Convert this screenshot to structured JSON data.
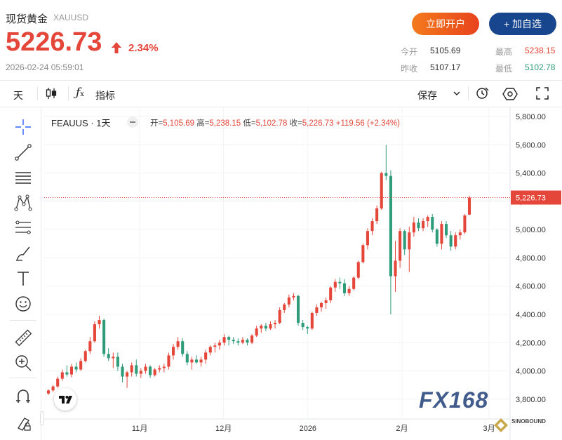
{
  "header": {
    "title": "现货黄金",
    "symbol": "XAUUSD",
    "price": "5226.73",
    "change_pct": "2.34%",
    "datetime": "2026-02-24 05:59:01",
    "open_account_label": "立即开户",
    "add_watch_label": "+ 加自选"
  },
  "stats": {
    "open_label": "今开",
    "open": "5105.69",
    "high_label": "最高",
    "high": "5238.15",
    "prev_close_label": "昨收",
    "prev_close": "5107.17",
    "low_label": "最低",
    "low": "5102.78"
  },
  "toolbar": {
    "interval": "天",
    "indicators_label": "指标",
    "save_label": "保存"
  },
  "chart_legend": {
    "name": "FEAUUS · 1天",
    "open_label": "开",
    "open": "5,105.69",
    "high_label": "高",
    "high": "5,238.15",
    "low_label": "低",
    "low": "5,102.78",
    "close_label": "收",
    "close": "5,226.73",
    "change": "+119.56 (+2.34%)"
  },
  "watermarks": {
    "fx168": "FX168",
    "sinobound": "SINOBOUND"
  },
  "colors": {
    "up": "#e5463a",
    "down": "#2e9b79",
    "accent": "#17468f"
  },
  "chart_data": {
    "type": "candlestick",
    "y_ticks": [
      "5,800.00",
      "5,600.00",
      "5,400.00",
      "5,200.00",
      "5,000.00",
      "4,800.00",
      "4,600.00",
      "4,400.00",
      "4,200.00",
      "4,000.00",
      "3,800.00"
    ],
    "x_ticks": [
      "11月",
      "12月",
      "2026",
      "2月",
      "3月"
    ],
    "last_price_label": "5,226.73",
    "last_price": 5226.73,
    "ylim": [
      3660,
      5870
    ],
    "candles": [
      [
        3840,
        3870,
        3830,
        3862
      ],
      [
        3862,
        3900,
        3850,
        3890
      ],
      [
        3890,
        3960,
        3880,
        3945
      ],
      [
        3945,
        4010,
        3930,
        3990
      ],
      [
        3990,
        4040,
        3960,
        3975
      ],
      [
        3975,
        4050,
        3955,
        4030
      ],
      [
        4030,
        4060,
        3990,
        4010
      ],
      [
        4010,
        4090,
        4000,
        4070
      ],
      [
        4070,
        4150,
        4060,
        4140
      ],
      [
        4140,
        4240,
        4120,
        4210
      ],
      [
        4210,
        4350,
        4200,
        4330
      ],
      [
        4330,
        4390,
        4300,
        4360
      ],
      [
        4360,
        4370,
        4100,
        4120
      ],
      [
        4120,
        4160,
        4070,
        4090
      ],
      [
        4090,
        4130,
        4020,
        4100
      ],
      [
        4100,
        4130,
        4000,
        4030
      ],
      [
        4030,
        4050,
        3920,
        3960
      ],
      [
        3960,
        4000,
        3880,
        3990
      ],
      [
        3990,
        4060,
        3960,
        4040
      ],
      [
        4040,
        4080,
        3960,
        3980
      ],
      [
        3980,
        4020,
        3950,
        4000
      ],
      [
        4000,
        4050,
        3980,
        4030
      ],
      [
        4030,
        4040,
        3950,
        3970
      ],
      [
        3970,
        4020,
        3960,
        4010
      ],
      [
        4010,
        4040,
        3990,
        4020
      ],
      [
        4020,
        4050,
        3990,
        4030
      ],
      [
        4030,
        4130,
        4010,
        4110
      ],
      [
        4110,
        4190,
        4080,
        4170
      ],
      [
        4170,
        4240,
        4150,
        4210
      ],
      [
        4210,
        4230,
        4100,
        4120
      ],
      [
        4120,
        4140,
        4040,
        4060
      ],
      [
        4060,
        4100,
        4010,
        4080
      ],
      [
        4080,
        4110,
        4050,
        4060
      ],
      [
        4060,
        4100,
        4030,
        4080
      ],
      [
        4080,
        4150,
        4050,
        4130
      ],
      [
        4130,
        4180,
        4110,
        4170
      ],
      [
        4170,
        4200,
        4130,
        4180
      ],
      [
        4180,
        4220,
        4150,
        4200
      ],
      [
        4200,
        4260,
        4180,
        4240
      ],
      [
        4240,
        4250,
        4180,
        4220
      ],
      [
        4220,
        4240,
        4190,
        4210
      ],
      [
        4210,
        4230,
        4180,
        4200
      ],
      [
        4200,
        4240,
        4190,
        4220
      ],
      [
        4220,
        4230,
        4180,
        4200
      ],
      [
        4200,
        4260,
        4190,
        4250
      ],
      [
        4250,
        4320,
        4240,
        4300
      ],
      [
        4300,
        4330,
        4270,
        4320
      ],
      [
        4320,
        4340,
        4280,
        4300
      ],
      [
        4300,
        4350,
        4290,
        4330
      ],
      [
        4330,
        4360,
        4300,
        4340
      ],
      [
        4340,
        4450,
        4330,
        4430
      ],
      [
        4430,
        4480,
        4410,
        4470
      ],
      [
        4470,
        4540,
        4450,
        4520
      ],
      [
        4520,
        4550,
        4500,
        4530
      ],
      [
        4530,
        4540,
        4320,
        4340
      ],
      [
        4340,
        4360,
        4290,
        4310
      ],
      [
        4310,
        4320,
        4260,
        4300
      ],
      [
        4300,
        4420,
        4290,
        4410
      ],
      [
        4410,
        4470,
        4390,
        4450
      ],
      [
        4450,
        4490,
        4420,
        4480
      ],
      [
        4480,
        4520,
        4440,
        4500
      ],
      [
        4500,
        4600,
        4480,
        4590
      ],
      [
        4590,
        4650,
        4560,
        4630
      ],
      [
        4630,
        4660,
        4580,
        4620
      ],
      [
        4620,
        4650,
        4530,
        4550
      ],
      [
        4550,
        4600,
        4530,
        4580
      ],
      [
        4580,
        4670,
        4570,
        4660
      ],
      [
        4660,
        4780,
        4650,
        4770
      ],
      [
        4770,
        4900,
        4760,
        4890
      ],
      [
        4890,
        5010,
        4860,
        4990
      ],
      [
        4990,
        5080,
        4960,
        5060
      ],
      [
        5060,
        5170,
        5040,
        5150
      ],
      [
        5150,
        5410,
        5140,
        5400
      ],
      [
        5400,
        5600,
        5350,
        5380
      ],
      [
        5380,
        5420,
        4400,
        4670
      ],
      [
        4670,
        4920,
        4560,
        4780
      ],
      [
        4780,
        5010,
        4730,
        4990
      ],
      [
        4990,
        5000,
        4820,
        4860
      ],
      [
        4860,
        5020,
        4700,
        4980
      ],
      [
        4980,
        5090,
        4950,
        5050
      ],
      [
        5050,
        5080,
        4990,
        5010
      ],
      [
        5010,
        5080,
        4990,
        5060
      ],
      [
        5060,
        5100,
        5020,
        5090
      ],
      [
        5090,
        5110,
        4980,
        5000
      ],
      [
        5000,
        5010,
        4880,
        4900
      ],
      [
        4900,
        5060,
        4860,
        5040
      ],
      [
        5040,
        5060,
        4940,
        4960
      ],
      [
        4960,
        4990,
        4850,
        4880
      ],
      [
        4880,
        4980,
        4860,
        4960
      ],
      [
        4960,
        5000,
        4930,
        4980
      ],
      [
        4980,
        5110,
        4970,
        5100
      ],
      [
        5105.69,
        5238.15,
        5102.78,
        5226.73
      ]
    ]
  }
}
